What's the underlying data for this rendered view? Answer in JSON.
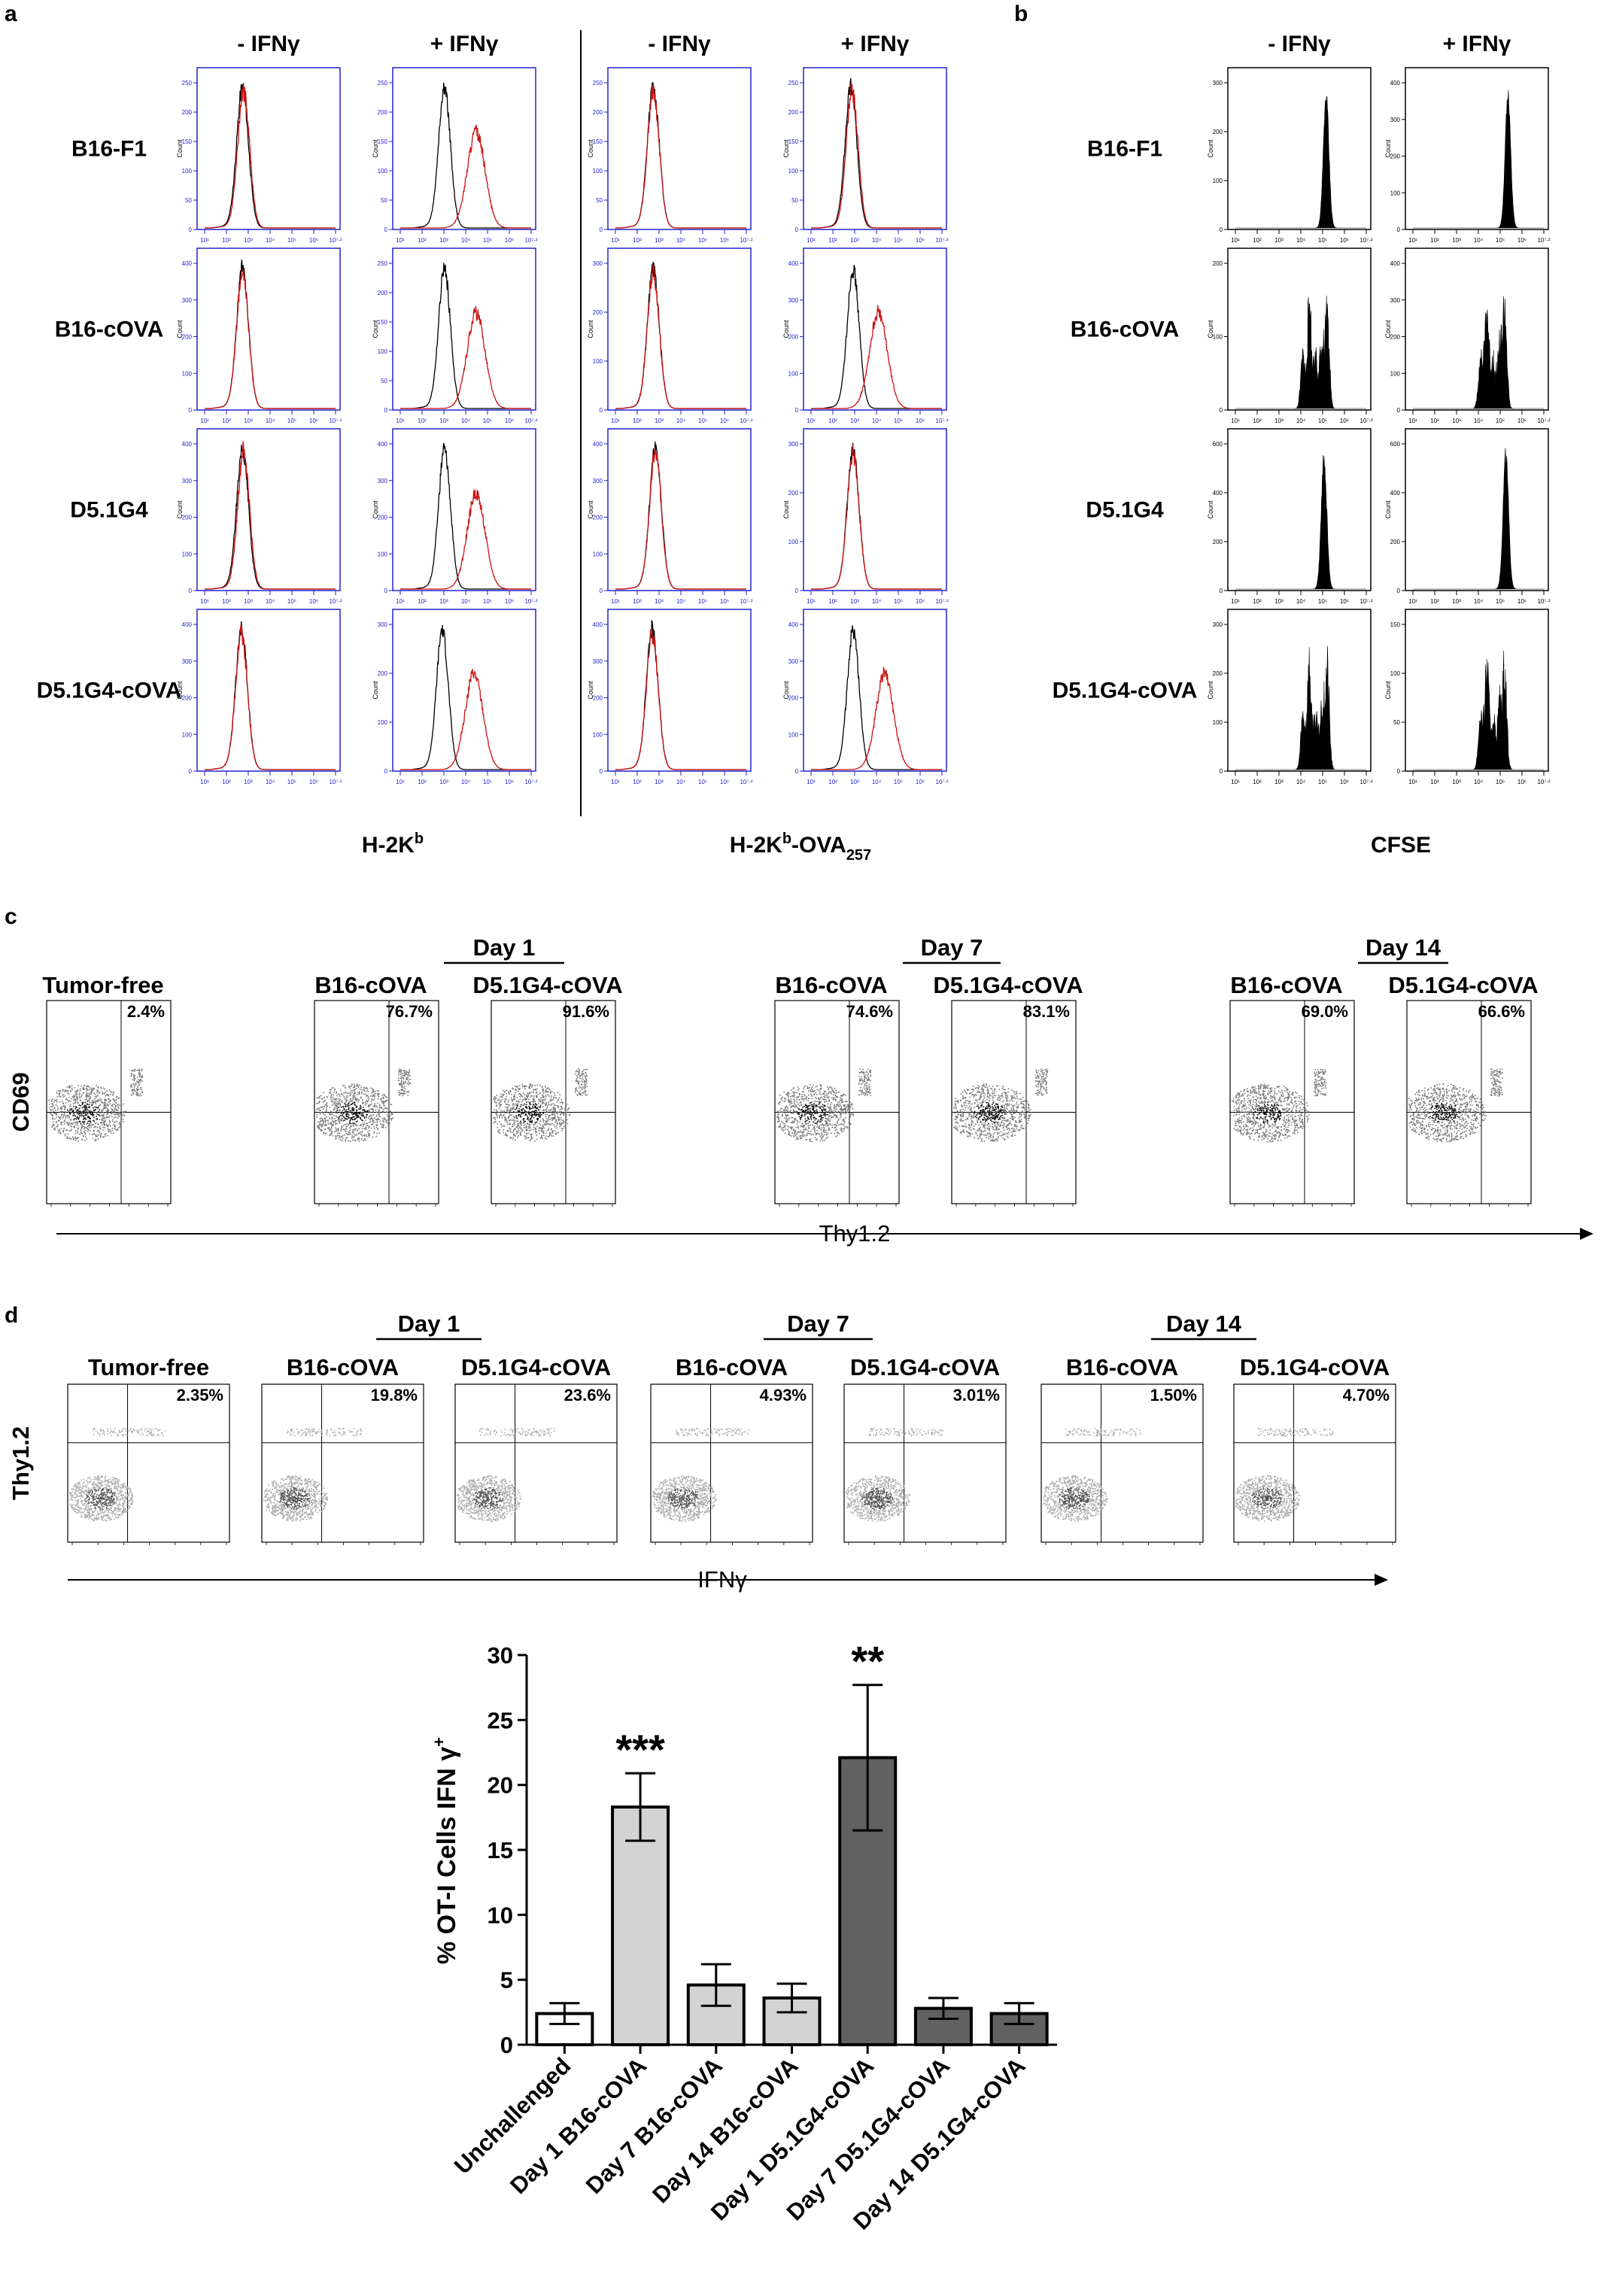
{
  "panel_letters": {
    "a": "a",
    "b": "b",
    "c": "c",
    "d": "d"
  },
  "panel_a": {
    "column_headers": [
      "- IFNγ",
      "+ IFNγ",
      "- IFNγ",
      "+ IFNγ"
    ],
    "row_labels": [
      "B16-F1",
      "B16-cOVA",
      "D5.1G4",
      "D5.1G4-cOVA"
    ],
    "xlabel_left": "H-2K",
    "xlabel_left_sup": "b",
    "xlabel_right": "H-2K",
    "xlabel_right_sup": "b",
    "xlabel_right_rest": "-OVA",
    "xlabel_right_sub": "257",
    "ylabel": "Count",
    "x_ticks": [
      "10¹",
      "10²",
      "10³",
      "10⁴",
      "10⁵",
      "10⁶",
      "10⁷·²"
    ],
    "overlay_colors": {
      "control": "#000000",
      "stained": "#cc1111"
    },
    "axis_color": "#2222cc",
    "histograms": [
      {
        "y_ticks": [
          "0",
          "50",
          "100",
          "150",
          "200",
          "250"
        ],
        "black_peak": 2.8,
        "red_peak": 2.85,
        "red_shifted": false
      },
      {
        "y_ticks": [
          "0",
          "50",
          "100",
          "150",
          "200",
          "250"
        ],
        "black_peak": 3.1,
        "red_peak": 4.6,
        "red_shifted": true
      },
      {
        "y_ticks": [
          "0",
          "50",
          "100",
          "150",
          "200",
          "250"
        ],
        "black_peak": 2.8,
        "red_peak": 2.8,
        "red_shifted": false
      },
      {
        "y_ticks": [
          "0",
          "50",
          "100",
          "150",
          "200",
          "250"
        ],
        "black_peak": 2.9,
        "red_peak": 2.95,
        "red_shifted": false
      },
      {
        "y_ticks": [
          "0",
          "100",
          "200",
          "300",
          "400"
        ],
        "black_peak": 2.8,
        "red_peak": 2.8,
        "red_shifted": false
      },
      {
        "y_ticks": [
          "0",
          "50",
          "100",
          "150",
          "200",
          "250"
        ],
        "black_peak": 3.1,
        "red_peak": 4.6,
        "red_shifted": true
      },
      {
        "y_ticks": [
          "0",
          "100",
          "200",
          "300"
        ],
        "black_peak": 2.8,
        "red_peak": 2.8,
        "red_shifted": false
      },
      {
        "y_ticks": [
          "0",
          "100",
          "200",
          "300",
          "400"
        ],
        "black_peak": 3.0,
        "red_peak": 4.2,
        "red_shifted": true
      },
      {
        "y_ticks": [
          "0",
          "100",
          "200",
          "300",
          "400"
        ],
        "black_peak": 2.8,
        "red_peak": 2.85,
        "red_shifted": false
      },
      {
        "y_ticks": [
          "0",
          "100",
          "200",
          "300",
          "400"
        ],
        "black_peak": 3.1,
        "red_peak": 4.6,
        "red_shifted": true
      },
      {
        "y_ticks": [
          "0",
          "100",
          "200",
          "300",
          "400"
        ],
        "black_peak": 2.9,
        "red_peak": 2.9,
        "red_shifted": false
      },
      {
        "y_ticks": [
          "0",
          "100",
          "200",
          "300"
        ],
        "black_peak": 3.0,
        "red_peak": 3.0,
        "red_shifted": false
      },
      {
        "y_ticks": [
          "0",
          "100",
          "200",
          "300",
          "400"
        ],
        "black_peak": 2.75,
        "red_peak": 2.75,
        "red_shifted": false
      },
      {
        "y_ticks": [
          "0",
          "100",
          "200",
          "300"
        ],
        "black_peak": 3.0,
        "red_peak": 4.5,
        "red_shifted": true
      },
      {
        "y_ticks": [
          "0",
          "100",
          "200",
          "300",
          "400"
        ],
        "black_peak": 2.75,
        "red_peak": 2.75,
        "red_shifted": false
      },
      {
        "y_ticks": [
          "0",
          "100",
          "200",
          "300",
          "400"
        ],
        "black_peak": 3.0,
        "red_peak": 4.5,
        "red_shifted": true
      }
    ]
  },
  "panel_b": {
    "column_headers": [
      "- IFNγ",
      "+ IFNγ"
    ],
    "row_labels": [
      "B16-F1",
      "B16-cOVA",
      "D5.1G4",
      "D5.1G4-cOVA"
    ],
    "xlabel": "CFSE",
    "ylabel": "Count",
    "x_ticks": [
      "10¹",
      "10²",
      "10³",
      "10⁴",
      "10⁵",
      "10⁶",
      "10⁷·²"
    ],
    "histograms": [
      {
        "y_ticks": [
          "0",
          "100",
          "200",
          "300"
        ],
        "peak": 5.3,
        "proliferated": false
      },
      {
        "y_ticks": [
          "0",
          "100",
          "200",
          "300",
          "400"
        ],
        "peak": 5.5,
        "proliferated": false
      },
      {
        "y_ticks": [
          "0",
          "100",
          "200"
        ],
        "peak": 4.8,
        "proliferated": true
      },
      {
        "y_ticks": [
          "0",
          "100",
          "200",
          "300",
          "400"
        ],
        "peak": 4.8,
        "proliferated": true
      },
      {
        "y_ticks": [
          "0",
          "200",
          "400",
          "600"
        ],
        "peak": 5.2,
        "proliferated": false
      },
      {
        "y_ticks": [
          "0",
          "200",
          "400",
          "600"
        ],
        "peak": 5.4,
        "proliferated": false
      },
      {
        "y_ticks": [
          "0",
          "100",
          "200",
          "300"
        ],
        "peak": 4.8,
        "proliferated": true
      },
      {
        "y_ticks": [
          "0",
          "50",
          "100",
          "150"
        ],
        "peak": 4.8,
        "proliferated": true
      }
    ]
  },
  "panel_c": {
    "groups": [
      "Day 1",
      "Day 7",
      "Day 14"
    ],
    "plots": [
      {
        "label": "Tumor-free",
        "percent": "2.4%"
      },
      {
        "label": "B16-cOVA",
        "percent": "76.7%"
      },
      {
        "label": "D5.1G4-cOVA",
        "percent": "91.6%"
      },
      {
        "label": "B16-cOVA",
        "percent": "74.6%"
      },
      {
        "label": "D5.1G4-cOVA",
        "percent": "83.1%"
      },
      {
        "label": "B16-cOVA",
        "percent": "69.0%"
      },
      {
        "label": "D5.1G4-cOVA",
        "percent": "66.6%"
      }
    ],
    "ylabel": "CD69",
    "xlabel": "Thy1.2"
  },
  "panel_d": {
    "groups": [
      "Day 1",
      "Day 7",
      "Day 14"
    ],
    "plots": [
      {
        "label": "Tumor-free",
        "percent": "2.35%"
      },
      {
        "label": "B16-cOVA",
        "percent": "19.8%"
      },
      {
        "label": "D5.1G4-cOVA",
        "percent": "23.6%"
      },
      {
        "label": "B16-cOVA",
        "percent": "4.93%"
      },
      {
        "label": "D5.1G4-cOVA",
        "percent": "3.01%"
      },
      {
        "label": "B16-cOVA",
        "percent": "1.50%"
      },
      {
        "label": "D5.1G4-cOVA",
        "percent": "4.70%"
      }
    ],
    "ylabel": "Thy1.2",
    "xlabel": "IFNγ"
  },
  "chart_data": {
    "type": "bar",
    "categories": [
      "Unchallenged",
      "Day 1 B16-cOVA",
      "Day 7 B16-cOVA",
      "Day 14 B16-cOVA",
      "Day 1 D5.1G4-cOVA",
      "Day 7 D5.1G4-cOVA",
      "Day 14 D5.1G4-cOVA"
    ],
    "values": [
      2.4,
      18.3,
      4.6,
      3.6,
      22.1,
      2.8,
      2.4
    ],
    "errors": [
      0.8,
      2.6,
      1.6,
      1.1,
      5.6,
      0.8,
      0.8
    ],
    "significance": [
      "",
      "***",
      "",
      "",
      "**",
      "",
      ""
    ],
    "bar_colors": [
      "#ffffff",
      "#d3d3d3",
      "#d3d3d3",
      "#d3d3d3",
      "#616161",
      "#616161",
      "#616161"
    ],
    "ylabel": "% OT-I Cells IFN γ",
    "ylabel_sup": "+",
    "xlabel": "",
    "title": "",
    "ylim": [
      0,
      30
    ],
    "y_ticks": [
      "0",
      "5",
      "10",
      "15",
      "20",
      "25",
      "30"
    ],
    "grid": false
  }
}
